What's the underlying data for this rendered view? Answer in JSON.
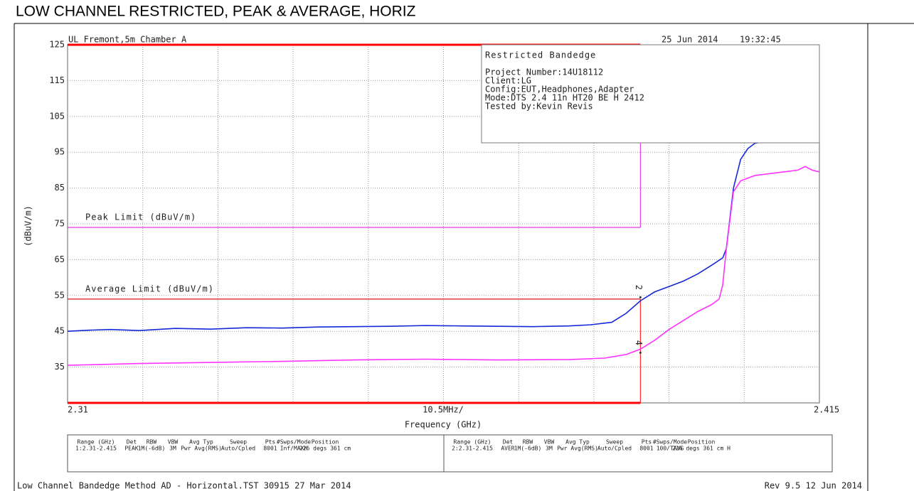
{
  "chart_data": {
    "type": "line",
    "title": "LOW CHANNEL RESTRICTED, PEAK & AVERAGE, HORIZ",
    "header_left": "UL Fremont,5m Chamber A",
    "header_date": "25 Jun 2014",
    "header_time": "19:32:45",
    "ylabel": "(dBuV/m)",
    "xlabel": "Frequency (GHz)",
    "x_division_label": "10.5MHz/",
    "xlim": [
      2.31,
      2.415
    ],
    "ylim": [
      25,
      125
    ],
    "xticks": [
      2.31,
      2.415
    ],
    "yticks": [
      35,
      45,
      55,
      65,
      75,
      85,
      95,
      105,
      115,
      125
    ],
    "x_divisions": 10,
    "grid": true,
    "restricted_band": [
      2.31,
      2.39
    ],
    "restricted_color": "#ff0000",
    "annotation": {
      "title": "Restricted Bandedge",
      "lines": [
        "Project Number:14U18112",
        "Client:LG",
        "Config:EUT,Headphones,Adapter",
        "Mode:DTS 2.4 11n HT20 BE H 2412",
        "Tested by:Kevin Revis"
      ]
    },
    "series": [
      {
        "name": "1",
        "color": "#1428d8",
        "x": [
          2.31,
          2.313,
          2.316,
          2.32,
          2.325,
          2.33,
          2.335,
          2.34,
          2.345,
          2.35,
          2.355,
          2.36,
          2.365,
          2.37,
          2.375,
          2.38,
          2.383,
          2.386,
          2.388,
          2.39,
          2.392,
          2.394,
          2.396,
          2.398,
          2.4,
          2.4015,
          2.402,
          2.403,
          2.404,
          2.405,
          2.406,
          2.408,
          2.41,
          2.411,
          2.413,
          2.414,
          2.415
        ],
        "values": [
          45,
          45.3,
          45.5,
          45.2,
          45.8,
          45.6,
          46,
          45.9,
          46.2,
          46.3,
          46.4,
          46.6,
          46.5,
          46.4,
          46.3,
          46.5,
          46.8,
          47.5,
          50,
          53.5,
          56,
          57.5,
          59,
          61,
          63.5,
          65.5,
          68,
          85,
          93,
          96,
          97.5,
          98.2,
          98.5,
          99.5,
          100.3,
          99.5,
          99
        ]
      },
      {
        "name": "2",
        "color": "#ff33ff",
        "x": [
          2.31,
          2.32,
          2.33,
          2.34,
          2.35,
          2.36,
          2.37,
          2.38,
          2.385,
          2.388,
          2.39,
          2.392,
          2.394,
          2.396,
          2.398,
          2.4,
          2.401,
          2.4015,
          2.402,
          2.403,
          2.404,
          2.406,
          2.408,
          2.41,
          2.412,
          2.413,
          2.414,
          2.415
        ],
        "values": [
          35.5,
          36,
          36.3,
          36.6,
          37,
          37.2,
          37,
          37.1,
          37.5,
          38.5,
          40,
          42.5,
          45.5,
          48,
          50.5,
          52.5,
          54,
          58,
          68,
          84,
          87,
          88.5,
          89,
          89.5,
          90,
          91,
          90,
          89.5
        ]
      },
      {
        "name": "Peak Limit (dBuV/m)",
        "color": "#e020e0",
        "x": [
          2.31,
          2.39
        ],
        "values": [
          74,
          74
        ]
      },
      {
        "name": "Average Limit (dBuV/m)",
        "color": "#e01010",
        "x": [
          2.31,
          2.39
        ],
        "values": [
          54,
          54
        ]
      }
    ],
    "markers": [
      {
        "label": "2",
        "x": 2.39,
        "y": 54.5
      },
      {
        "label": "4",
        "x": 2.39,
        "y": 39
      }
    ],
    "settings_table": {
      "headers": [
        "Range (GHz)",
        "Det",
        "RBW",
        "VBW",
        "Avg Typ",
        "Sweep",
        "Pts",
        "#Swps/Mode",
        "Position"
      ],
      "rows": [
        [
          "1:2.31-2.415",
          "PEAK",
          "1M(-6dB)",
          "3M",
          "Pwr Avg(RMS)",
          "Auto/Cpled",
          "8001",
          "Inf/MAXH",
          "226 degs 361 cm"
        ],
        [
          "2:2.31-2.415",
          "AVER",
          "1M(-6dB)",
          "3M",
          "Pwr Avg(RMS)",
          "Auto/Cpled",
          "8001",
          "100/TAVG",
          "226 degs 361 cm H"
        ]
      ]
    },
    "footer_left": "Low Channel Bandedge Method AD - Horizontal.TST 30915 27 Mar 2014",
    "footer_right": "Rev 9.5 12 Jun 2014"
  }
}
